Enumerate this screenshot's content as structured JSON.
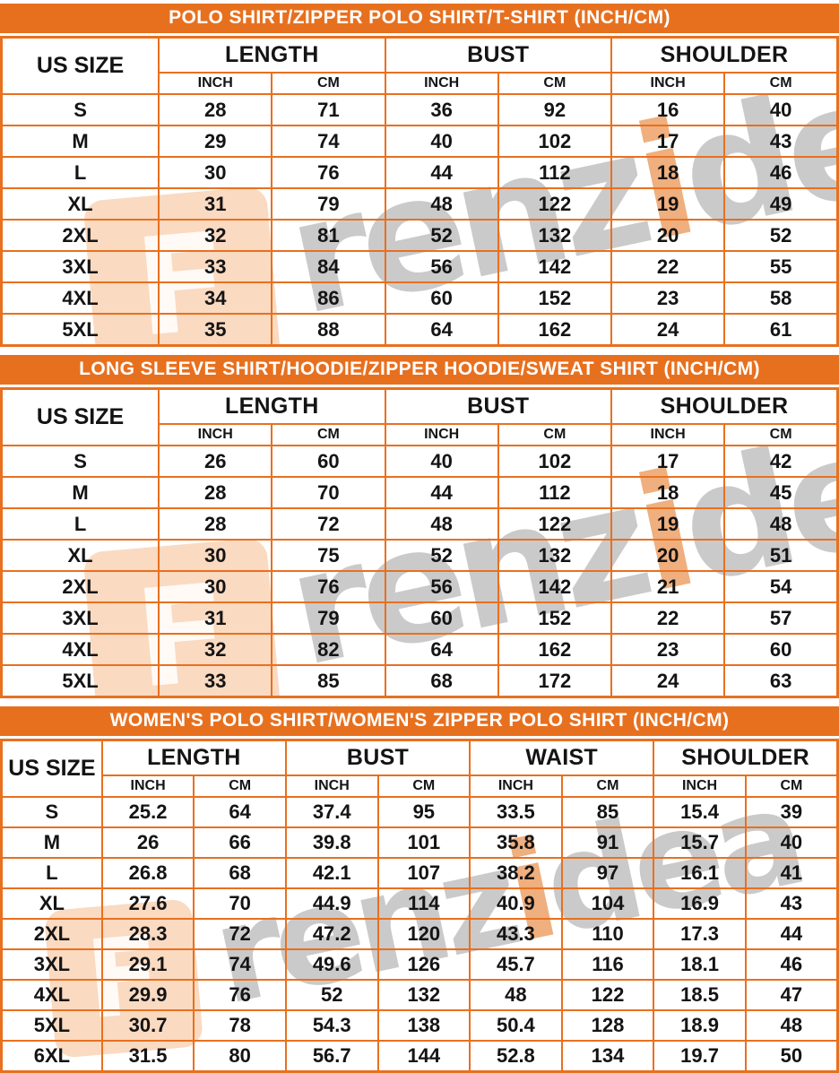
{
  "colors": {
    "banner_bg": "#e7701f",
    "grid_border": "#e8701f",
    "banner_text": "#ffffff",
    "cell_text": "#141414",
    "watermark_gray": "#9e9e9e",
    "watermark_orange": "#f3a66c"
  },
  "watermark": {
    "logo_letter": "F",
    "part1": "renz",
    "letter_i": "i",
    "part2": "dea"
  },
  "chart_data": [
    {
      "type": "table",
      "title": "POLO SHIRT/ZIPPER POLO SHIRT/T-SHIRT (INCH/CM)",
      "corner_header": "US SIZE",
      "column_groups": [
        "LENGTH",
        "BUST",
        "SHOULDER"
      ],
      "unit_headers": [
        "INCH",
        "CM"
      ],
      "row_labels": [
        "S",
        "M",
        "L",
        "XL",
        "2XL",
        "3XL",
        "4XL",
        "5XL"
      ],
      "rows": [
        [
          28,
          71,
          36,
          92,
          16,
          40
        ],
        [
          29,
          74,
          40,
          102,
          17,
          43
        ],
        [
          30,
          76,
          44,
          112,
          18,
          46
        ],
        [
          31,
          79,
          48,
          122,
          19,
          49
        ],
        [
          32,
          81,
          52,
          132,
          20,
          52
        ],
        [
          33,
          84,
          56,
          142,
          22,
          55
        ],
        [
          34,
          86,
          60,
          152,
          23,
          58
        ],
        [
          35,
          88,
          64,
          162,
          24,
          61
        ]
      ]
    },
    {
      "type": "table",
      "title": "LONG SLEEVE SHIRT/HOODIE/ZIPPER HOODIE/SWEAT SHIRT (INCH/CM)",
      "corner_header": "US SIZE",
      "column_groups": [
        "LENGTH",
        "BUST",
        "SHOULDER"
      ],
      "unit_headers": [
        "INCH",
        "CM"
      ],
      "row_labels": [
        "S",
        "M",
        "L",
        "XL",
        "2XL",
        "3XL",
        "4XL",
        "5XL"
      ],
      "rows": [
        [
          26,
          60,
          40,
          102,
          17,
          42
        ],
        [
          28,
          70,
          44,
          112,
          18,
          45
        ],
        [
          28,
          72,
          48,
          122,
          19,
          48
        ],
        [
          30,
          75,
          52,
          132,
          20,
          51
        ],
        [
          30,
          76,
          56,
          142,
          21,
          54
        ],
        [
          31,
          79,
          60,
          152,
          22,
          57
        ],
        [
          32,
          82,
          64,
          162,
          23,
          60
        ],
        [
          33,
          85,
          68,
          172,
          24,
          63
        ]
      ]
    },
    {
      "type": "table",
      "title": "WOMEN'S POLO SHIRT/WOMEN'S ZIPPER POLO SHIRT (INCH/CM)",
      "corner_header": "US SIZE",
      "column_groups": [
        "LENGTH",
        "BUST",
        "WAIST",
        "SHOULDER"
      ],
      "unit_headers": [
        "INCH",
        "CM"
      ],
      "row_labels": [
        "S",
        "M",
        "L",
        "XL",
        "2XL",
        "3XL",
        "4XL",
        "5XL",
        "6XL"
      ],
      "rows": [
        [
          25.2,
          64,
          37.4,
          95,
          33.5,
          85,
          15.4,
          39
        ],
        [
          26,
          66,
          39.8,
          101,
          35.8,
          91,
          15.7,
          40
        ],
        [
          26.8,
          68,
          42.1,
          107,
          38.2,
          97,
          16.1,
          41
        ],
        [
          27.6,
          70,
          44.9,
          114,
          40.9,
          104,
          16.9,
          43
        ],
        [
          28.3,
          72,
          47.2,
          120,
          43.3,
          110,
          17.3,
          44
        ],
        [
          29.1,
          74,
          49.6,
          126,
          45.7,
          116,
          18.1,
          46
        ],
        [
          29.9,
          76,
          52,
          132,
          48,
          122,
          18.5,
          47
        ],
        [
          30.7,
          78,
          54.3,
          138,
          50.4,
          128,
          18.9,
          48
        ],
        [
          31.5,
          80,
          56.7,
          144,
          52.8,
          134,
          19.7,
          50
        ]
      ]
    }
  ]
}
